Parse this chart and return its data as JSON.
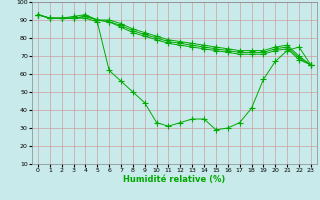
{
  "title": "",
  "xlabel": "Humidité relative (%)",
  "ylabel": "",
  "background_color": "#c8eaea",
  "grid_color": "#cc9999",
  "line_color": "#00aa00",
  "marker": "+",
  "marker_size": 4,
  "xlim": [
    -0.5,
    23.5
  ],
  "ylim": [
    10,
    100
  ],
  "yticks": [
    10,
    20,
    30,
    40,
    50,
    60,
    70,
    80,
    90,
    100
  ],
  "xticks": [
    0,
    1,
    2,
    3,
    4,
    5,
    6,
    7,
    8,
    9,
    10,
    11,
    12,
    13,
    14,
    15,
    16,
    17,
    18,
    19,
    20,
    21,
    22,
    23
  ],
  "series": [
    [
      93,
      91,
      91,
      91,
      91,
      89,
      62,
      56,
      50,
      44,
      33,
      31,
      33,
      35,
      35,
      29,
      30,
      33,
      41,
      57,
      67,
      73,
      75,
      65
    ],
    [
      93,
      91,
      91,
      91,
      92,
      90,
      89,
      86,
      83,
      81,
      79,
      77,
      76,
      75,
      74,
      73,
      72,
      71,
      71,
      71,
      73,
      74,
      68,
      65
    ],
    [
      93,
      91,
      91,
      91,
      92,
      90,
      89,
      87,
      84,
      82,
      80,
      78,
      77,
      76,
      75,
      74,
      73,
      72,
      72,
      72,
      74,
      75,
      69,
      65
    ],
    [
      93,
      91,
      91,
      92,
      93,
      90,
      90,
      88,
      85,
      83,
      81,
      79,
      78,
      77,
      76,
      75,
      74,
      73,
      73,
      73,
      75,
      76,
      70,
      65
    ]
  ]
}
